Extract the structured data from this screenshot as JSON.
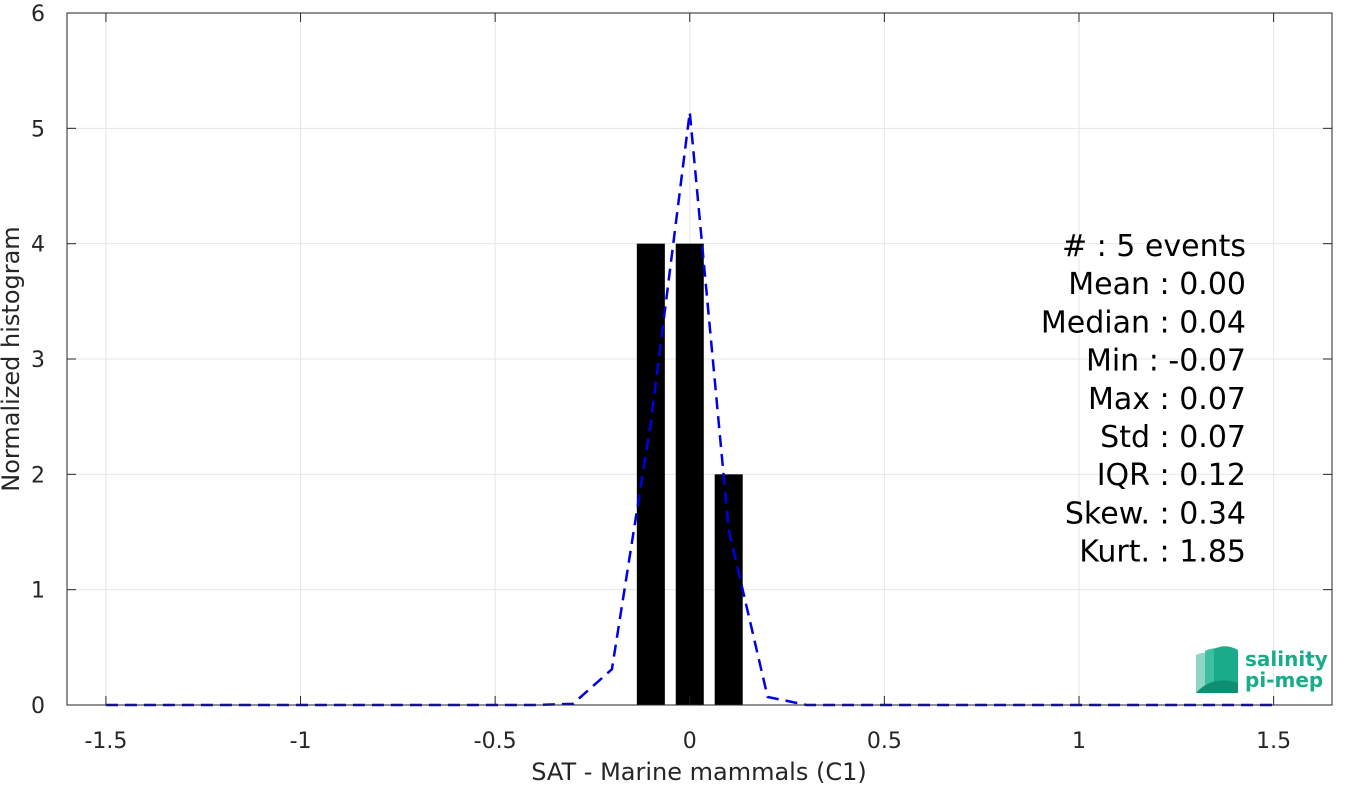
{
  "chart_data": {
    "type": "bar",
    "xlabel": "SAT - Marine mammals (C1)",
    "ylabel": "Normalized histogram",
    "xlim": [
      -1.6,
      1.65
    ],
    "ylim": [
      0,
      6
    ],
    "xticks": [
      -1.5,
      -1,
      -0.5,
      0,
      0.5,
      1,
      1.5
    ],
    "xtick_labels": [
      "-1.5",
      "-1",
      "-0.5",
      "0",
      "0.5",
      "1",
      "1.5"
    ],
    "yticks": [
      0,
      1,
      2,
      3,
      4,
      5,
      6
    ],
    "ytick_labels": [
      "0",
      "1",
      "2",
      "3",
      "4",
      "5",
      "6"
    ],
    "grid": true,
    "bars": {
      "color": "#000000",
      "bin_width": 0.1,
      "centers": [
        -0.1,
        0.0,
        0.1
      ],
      "values": [
        4,
        4,
        2
      ]
    },
    "fit_curve": {
      "color": "#0000e6",
      "style": "dashed",
      "x": [
        -1.5,
        -1.4,
        -1.3,
        -1.2,
        -1.1,
        -1.0,
        -0.9,
        -0.8,
        -0.7,
        -0.6,
        -0.5,
        -0.4,
        -0.3,
        -0.2,
        -0.1,
        0.0,
        0.1,
        0.2,
        0.3,
        0.4,
        0.5,
        0.6,
        0.7,
        0.8,
        0.9,
        1.0,
        1.1,
        1.2,
        1.3,
        1.4,
        1.5
      ],
      "y": [
        0,
        0,
        0,
        0,
        0,
        0,
        0,
        0,
        0,
        0,
        0,
        0,
        0.01,
        0.31,
        2.45,
        5.14,
        1.52,
        0.07,
        0,
        0,
        0,
        0,
        0,
        0,
        0,
        0,
        0,
        0,
        0,
        0,
        0
      ]
    },
    "stats": [
      "#  : 5 events",
      "Mean : 0.00",
      "Median : 0.04",
      "Min : -0.07",
      "Max : 0.07",
      "Std : 0.07",
      "IQR : 0.12",
      "Skew. : 0.34",
      "Kurt. : 1.85"
    ]
  },
  "logo": {
    "line1": "salinity",
    "line2": "pi-mep",
    "color": "#1aab8a"
  }
}
